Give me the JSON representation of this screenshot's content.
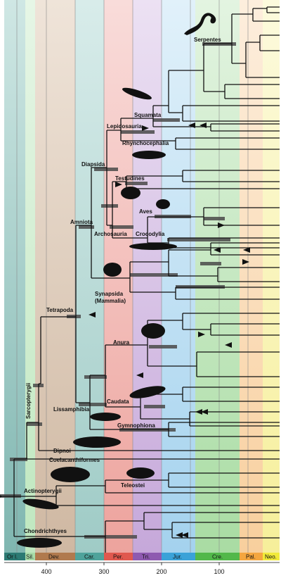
{
  "periods": [
    {
      "abbr": "Or l.",
      "color": "#2c7a73"
    },
    {
      "abbr": "Sil.",
      "color": "#a8dca8"
    },
    {
      "abbr": "Dev.",
      "color": "#b07a4e"
    },
    {
      "abbr": "Car.",
      "color": "#4fa39b"
    },
    {
      "abbr": "Per.",
      "color": "#e0584e"
    },
    {
      "abbr": "Tri.",
      "color": "#8e5ab0"
    },
    {
      "abbr": "Jur.",
      "color": "#3aa2d8"
    },
    {
      "abbr": "Cre.",
      "color": "#52b84a"
    },
    {
      "abbr": "Pal.",
      "color": "#f4a640"
    },
    {
      "abbr": "Neo.",
      "color": "#f1ea3a"
    }
  ],
  "axis": {
    "ticks": [
      "400",
      "300",
      "200",
      "100"
    ]
  },
  "clades": [
    {
      "name": "Serpentes"
    },
    {
      "name": "Squamata"
    },
    {
      "name": "Lepidosauria"
    },
    {
      "name": "Rhynchocephalia"
    },
    {
      "name": "Diapsida"
    },
    {
      "name": "Testudines"
    },
    {
      "name": "Aves"
    },
    {
      "name": "Amniota"
    },
    {
      "name": "Crocodylia"
    },
    {
      "name": "Archosauria"
    },
    {
      "name": "Synapsida"
    },
    {
      "name": "(Mammalia)"
    },
    {
      "name": "Tetrapoda"
    },
    {
      "name": "Anura"
    },
    {
      "name": "Caudata"
    },
    {
      "name": "Lissamphibia"
    },
    {
      "name": "Gymnophiona"
    },
    {
      "name": "Sarcopterygii"
    },
    {
      "name": "Dipnoi"
    },
    {
      "name": "Coelacanthiformes"
    },
    {
      "name": "Teleostei"
    },
    {
      "name": "Actinopterygii"
    },
    {
      "name": "Chondrichthyes"
    }
  ],
  "silhouettes": [
    {
      "icon": "snake-icon"
    },
    {
      "icon": "lizard-icon"
    },
    {
      "icon": "tuatara-icon"
    },
    {
      "icon": "turtle-icon"
    },
    {
      "icon": "bird-icon"
    },
    {
      "icon": "crocodile-icon"
    },
    {
      "icon": "mouse-icon"
    },
    {
      "icon": "frog-icon"
    },
    {
      "icon": "salamander-icon"
    },
    {
      "icon": "caecilian-icon"
    },
    {
      "icon": "lungfish-icon"
    },
    {
      "icon": "coelacanth-icon"
    },
    {
      "icon": "teleost-fish-icon"
    },
    {
      "icon": "sturgeon-icon"
    },
    {
      "icon": "shark-icon"
    }
  ]
}
